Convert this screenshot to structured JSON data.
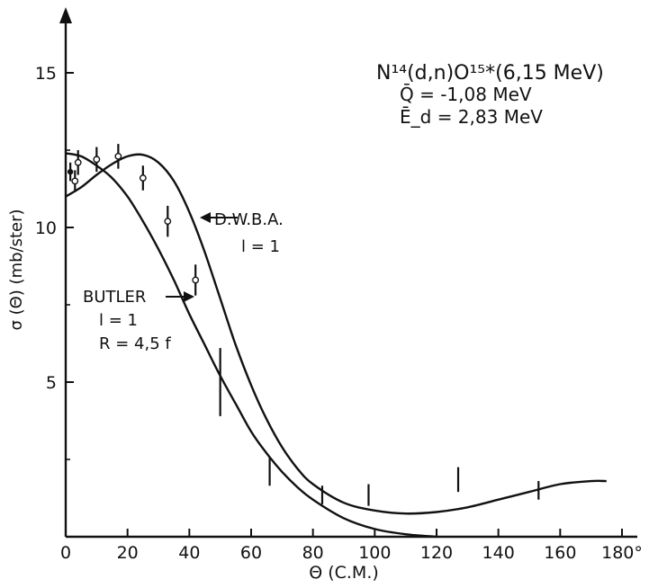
{
  "chart_data": {
    "type": "line",
    "xlabel": "Θ (C.M.)",
    "ylabel": "σ (Θ) (mb/ster)",
    "xlim": [
      0,
      180
    ],
    "ylim": [
      0,
      17
    ],
    "x_ticks": [
      "0",
      "20",
      "40",
      "60",
      "80",
      "100",
      "120",
      "140",
      "160",
      "180°"
    ],
    "y_ticks": [
      "5",
      "10",
      "15"
    ],
    "reaction_label": {
      "reaction": "N¹⁴(d,n)O¹⁵*(6,15 MeV)",
      "q_value": "Q̄ = -1,08 MeV",
      "energy": "Ē_d = 2,83 MeV"
    },
    "series": [
      {
        "name": "D.W.B.A. l=1",
        "label_lines": [
          "D.W.B.A.",
          "l = 1"
        ],
        "x": [
          0,
          5,
          10,
          15,
          20,
          25,
          30,
          35,
          40,
          45,
          50,
          55,
          60,
          65,
          70,
          75,
          80,
          90,
          100,
          110,
          120,
          130,
          140,
          150,
          160,
          170,
          175
        ],
        "values": [
          11.0,
          11.3,
          11.7,
          12.05,
          12.3,
          12.35,
          12.1,
          11.5,
          10.5,
          9.2,
          7.7,
          6.2,
          4.9,
          3.8,
          2.9,
          2.2,
          1.7,
          1.1,
          0.85,
          0.75,
          0.8,
          0.95,
          1.2,
          1.45,
          1.7,
          1.8,
          1.8
        ]
      },
      {
        "name": "BUTLER l=1 R=4,5 f",
        "label_lines": [
          "BUTLER",
          "l = 1",
          "R = 4,5 f"
        ],
        "x": [
          0,
          5,
          10,
          15,
          20,
          25,
          30,
          35,
          40,
          45,
          50,
          55,
          60,
          65,
          70,
          75,
          80,
          90,
          100,
          110,
          120
        ],
        "values": [
          12.4,
          12.3,
          12.0,
          11.6,
          11.0,
          10.2,
          9.3,
          8.3,
          7.2,
          6.2,
          5.2,
          4.3,
          3.4,
          2.7,
          2.1,
          1.6,
          1.2,
          0.6,
          0.25,
          0.08,
          0.0
        ]
      }
    ],
    "data_points": [
      {
        "x": 1.5,
        "y": 11.8,
        "err": 0.3,
        "marker": "dot"
      },
      {
        "x": 3,
        "y": 11.5,
        "err": 0.35,
        "marker": "circle"
      },
      {
        "x": 4,
        "y": 12.1,
        "err": 0.4,
        "marker": "circle"
      },
      {
        "x": 10,
        "y": 12.2,
        "err": 0.4,
        "marker": "circle"
      },
      {
        "x": 17,
        "y": 12.3,
        "err": 0.4,
        "marker": "circle"
      },
      {
        "x": 25,
        "y": 11.6,
        "err": 0.4,
        "marker": "circle"
      },
      {
        "x": 33,
        "y": 10.2,
        "err": 0.5,
        "marker": "circle"
      },
      {
        "x": 42,
        "y": 8.3,
        "err": 0.5,
        "marker": "circle"
      },
      {
        "x": 50,
        "y": 5.0,
        "err": 1.1,
        "marker": "none"
      },
      {
        "x": 66,
        "y": 2.1,
        "err": 0.45,
        "marker": "none"
      },
      {
        "x": 83,
        "y": 1.35,
        "err": 0.3,
        "marker": "none"
      },
      {
        "x": 98,
        "y": 1.35,
        "err": 0.35,
        "marker": "none"
      },
      {
        "x": 127,
        "y": 1.85,
        "err": 0.4,
        "marker": "none"
      },
      {
        "x": 153,
        "y": 1.5,
        "err": 0.3,
        "marker": "none"
      }
    ]
  }
}
